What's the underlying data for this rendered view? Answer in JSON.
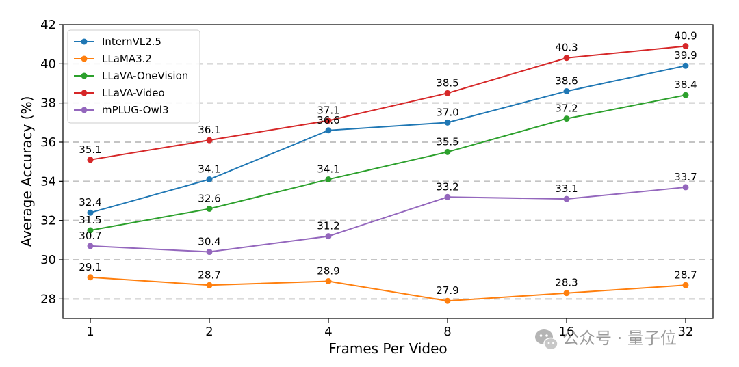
{
  "chart_data": {
    "type": "line",
    "xlabel": "Frames Per Video",
    "ylabel": "Average Accuracy (%)",
    "x": [
      "1",
      "2",
      "4",
      "8",
      "16",
      "32"
    ],
    "ylim": [
      27.0,
      42.0
    ],
    "yticks": [
      28,
      30,
      32,
      34,
      36,
      38,
      40,
      42
    ],
    "grid": "horizontal dashed",
    "legend_position": "top-left",
    "series": [
      {
        "name": "InternVL2.5",
        "color": "#1f77b4",
        "values": [
          32.4,
          34.1,
          36.6,
          37.0,
          38.6,
          39.9
        ],
        "labels": [
          "32.4",
          "34.1",
          "36.6",
          "37.0",
          "38.6",
          "39.9"
        ]
      },
      {
        "name": "LLaMA3.2",
        "color": "#ff7f0e",
        "values": [
          29.1,
          28.7,
          28.9,
          27.9,
          28.3,
          28.7
        ],
        "labels": [
          "29.1",
          "28.7",
          "28.9",
          "27.9",
          "28.3",
          "28.7"
        ]
      },
      {
        "name": "LLaVA-OneVision",
        "color": "#2ca02c",
        "values": [
          31.5,
          32.6,
          34.1,
          35.5,
          37.2,
          38.4
        ],
        "labels": [
          "31.5",
          "32.6",
          "34.1",
          "35.5",
          "37.2",
          "38.4"
        ]
      },
      {
        "name": "LLaVA-Video",
        "color": "#d62728",
        "values": [
          35.1,
          36.1,
          37.1,
          38.5,
          40.3,
          40.9
        ],
        "labels": [
          "35.1",
          "36.1",
          "37.1",
          "38.5",
          "40.3",
          "40.9"
        ]
      },
      {
        "name": "mPLUG-Owl3",
        "color": "#9467bd",
        "values": [
          30.7,
          30.4,
          31.2,
          33.2,
          33.1,
          33.7
        ],
        "labels": [
          "30.7",
          "30.4",
          "31.2",
          "33.2",
          "33.1",
          "33.7"
        ]
      }
    ]
  },
  "watermark": {
    "text": "公众号 · 量子位",
    "icon": "wechat-icon"
  }
}
